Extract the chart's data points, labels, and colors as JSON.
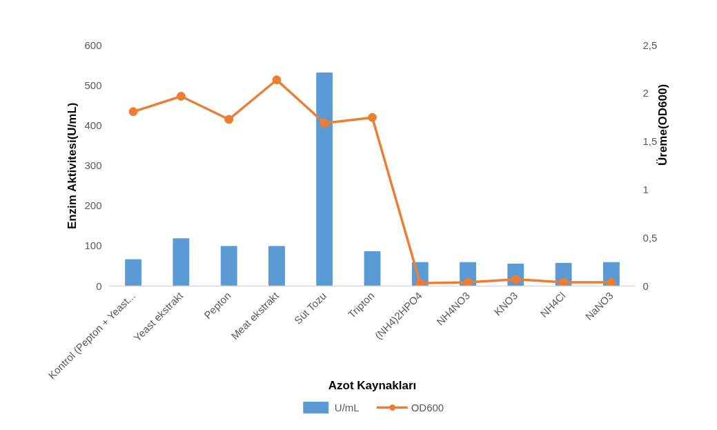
{
  "chart_data": {
    "type": "bar",
    "xlabel": "Azot Kaynakları",
    "ylabel": "Enzim Aktivitesi(U/mL)",
    "y2label": "Üreme(OD600)",
    "categories": [
      "Kontrol (Pepton + Yeast...",
      "Yeast ekstrakt",
      "Pepton",
      "Meat ekstrakt",
      "Süt Tozu",
      "Tripton",
      "(NH4)2HPO4",
      "NH4NO3",
      "KNO3",
      "NH4Cl",
      "NaNO3"
    ],
    "series": [
      {
        "name": "U/mL",
        "color": "#5b9bd5",
        "values": [
          66,
          118,
          99,
          99,
          531,
          86,
          59,
          59,
          55,
          57,
          59
        ]
      },
      {
        "name": "OD600",
        "type": "line",
        "axis": "y2",
        "color": "#ed7d31",
        "marker": "circle",
        "values": [
          1.81,
          1.97,
          1.73,
          2.14,
          1.69,
          1.75,
          0.03,
          0.04,
          0.07,
          0.04,
          0.04
        ]
      }
    ],
    "ylim": [
      0,
      600
    ],
    "yticks": [
      0,
      100,
      200,
      300,
      400,
      500,
      600
    ],
    "y2lim": [
      0,
      2.5
    ],
    "y2ticks": [
      0,
      {
        "value": 0.5,
        "label": "0,5"
      },
      1,
      {
        "value": 1.5,
        "label": "1,5"
      },
      2,
      {
        "value": 2.5,
        "label": "2,5"
      }
    ],
    "grid": false,
    "legend": "bottom"
  }
}
